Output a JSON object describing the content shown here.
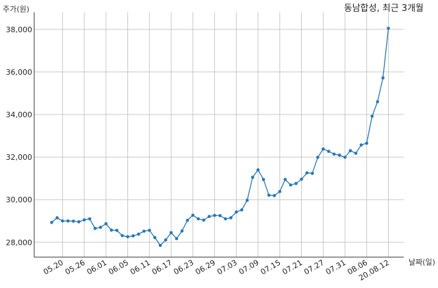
{
  "chart_data": {
    "type": "line",
    "title": "동남합성, 최근 3개월",
    "xlabel": "날짜(일)",
    "ylabel": "주가(원)",
    "ylim": [
      27300,
      38800
    ],
    "yticks": [
      28000,
      30000,
      32000,
      34000,
      36000,
      38000
    ],
    "ytick_labels": [
      "28,000",
      "30,000",
      "32,000",
      "34,000",
      "36,000",
      "38,000"
    ],
    "xtick_labels": [
      "05.20",
      "05.26",
      "06.01",
      "06.05",
      "06.11",
      "06.17",
      "06.23",
      "06.29",
      "07.03",
      "07.09",
      "07.15",
      "07.21",
      "07.27",
      "07.31",
      "08.06",
      "20.08.12"
    ],
    "xtick_index": [
      2,
      6,
      10,
      14,
      18,
      22,
      26,
      30,
      34,
      38,
      42,
      46,
      50,
      54,
      58,
      62
    ],
    "grid": true,
    "line_color": "#2878b4",
    "series": [
      {
        "values": [
          28930,
          29150,
          29000,
          29000,
          28990,
          28960,
          29050,
          29100,
          28650,
          28700,
          28870,
          28570,
          28560,
          28310,
          28260,
          28300,
          28380,
          28520,
          28560,
          28220,
          27850,
          28110,
          28450,
          28170,
          28530,
          29030,
          29270,
          29100,
          29040,
          29210,
          29260,
          29250,
          29100,
          29150,
          29420,
          29520,
          29970,
          31050,
          31400,
          30950,
          30210,
          30190,
          30380,
          30950,
          30690,
          30760,
          30960,
          31260,
          31240,
          31990,
          32380,
          32270,
          32140,
          32090,
          31990,
          32300,
          32180,
          32570,
          32650,
          33920,
          34600,
          35720,
          38050
        ]
      }
    ]
  }
}
